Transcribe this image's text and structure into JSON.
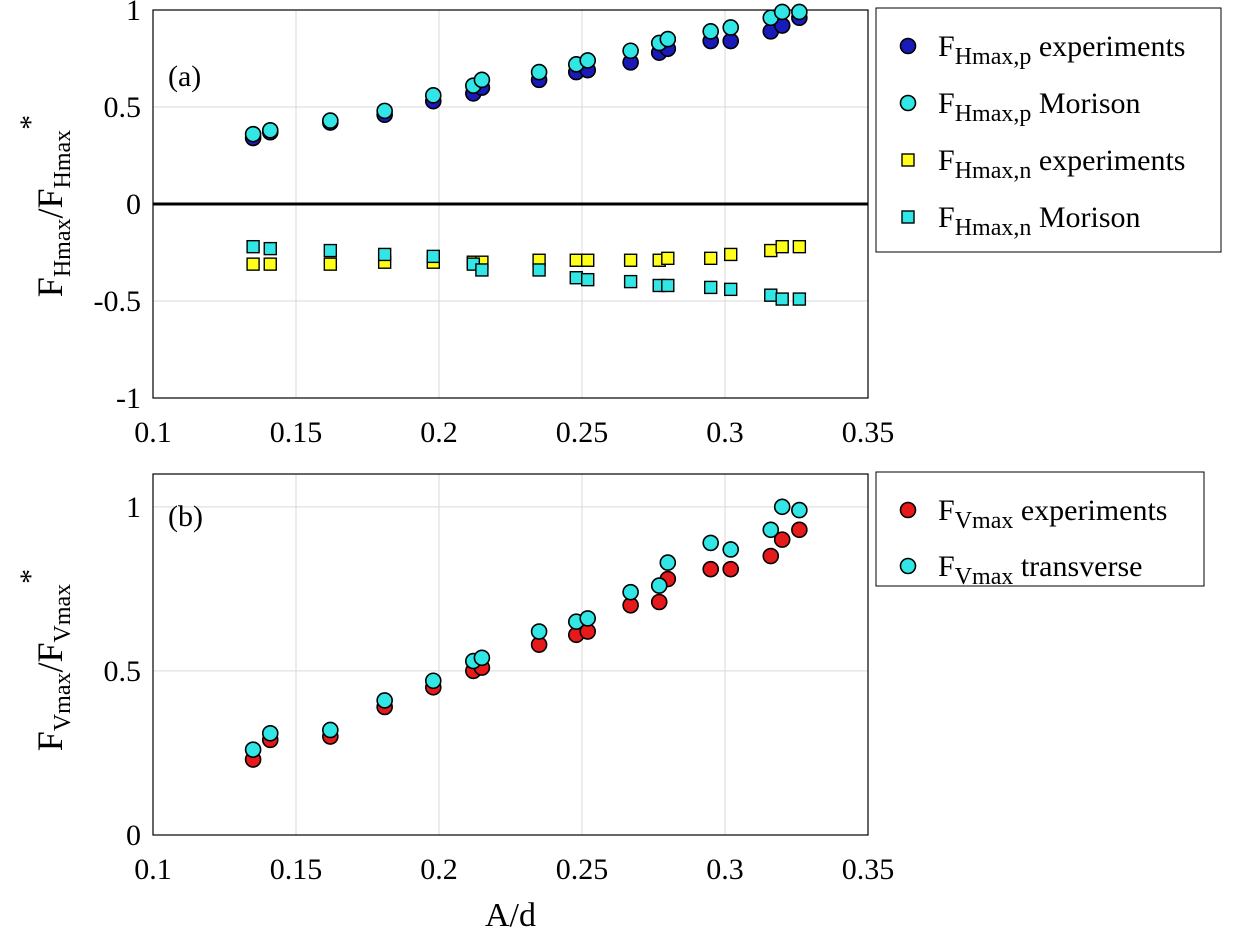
{
  "chart_data": [
    {
      "type": "scatter",
      "panel_label": "(a)",
      "xlim": [
        0.1,
        0.35
      ],
      "ylim": [
        -1,
        1
      ],
      "xticks": [
        "0.1",
        "0.15",
        "0.2",
        "0.25",
        "0.3",
        "0.35"
      ],
      "yticks": [
        "-1",
        "-0.5",
        "0",
        "0.5",
        "1"
      ],
      "grid": true,
      "zero_line": true,
      "ylabel": {
        "F1": "F",
        "sub1": "Hmax",
        "slash": "/F",
        "sub2": "Hmax",
        "star": "*"
      },
      "legend_position": "outside-right",
      "series": [
        {
          "name": {
            "main": "F",
            "sub": "Hmax,p",
            "rest": " experiments"
          },
          "marker": "circle",
          "color": "#1a1ab8",
          "x": [
            0.135,
            0.141,
            0.162,
            0.181,
            0.198,
            0.212,
            0.215,
            0.235,
            0.248,
            0.252,
            0.267,
            0.277,
            0.28,
            0.295,
            0.302,
            0.316,
            0.32,
            0.326
          ],
          "y": [
            0.34,
            0.37,
            0.42,
            0.46,
            0.53,
            0.57,
            0.6,
            0.64,
            0.68,
            0.69,
            0.73,
            0.78,
            0.8,
            0.84,
            0.84,
            0.89,
            0.92,
            0.96
          ]
        },
        {
          "name": {
            "main": "F",
            "sub": "Hmax,p",
            "rest": " Morison"
          },
          "marker": "circle",
          "color": "#33e6e6",
          "x": [
            0.135,
            0.141,
            0.162,
            0.181,
            0.198,
            0.212,
            0.215,
            0.235,
            0.248,
            0.252,
            0.267,
            0.277,
            0.28,
            0.295,
            0.302,
            0.316,
            0.32,
            0.326
          ],
          "y": [
            0.36,
            0.38,
            0.43,
            0.48,
            0.56,
            0.61,
            0.64,
            0.68,
            0.72,
            0.74,
            0.79,
            0.83,
            0.85,
            0.89,
            0.91,
            0.96,
            0.99,
            0.99
          ]
        },
        {
          "name": {
            "main": "F",
            "sub": "Hmax,n",
            "rest": " experiments"
          },
          "marker": "square",
          "color": "#ffff1a",
          "x": [
            0.135,
            0.141,
            0.162,
            0.181,
            0.198,
            0.212,
            0.215,
            0.235,
            0.248,
            0.252,
            0.267,
            0.277,
            0.28,
            0.295,
            0.302,
            0.316,
            0.32,
            0.326
          ],
          "y": [
            -0.31,
            -0.31,
            -0.31,
            -0.3,
            -0.3,
            -0.3,
            -0.3,
            -0.29,
            -0.29,
            -0.29,
            -0.29,
            -0.29,
            -0.28,
            -0.28,
            -0.26,
            -0.24,
            -0.22,
            -0.22
          ]
        },
        {
          "name": {
            "main": "F",
            "sub": "Hmax,n",
            "rest": " Morison"
          },
          "marker": "square",
          "color": "#33e6e6",
          "x": [
            0.135,
            0.141,
            0.162,
            0.181,
            0.198,
            0.212,
            0.215,
            0.235,
            0.248,
            0.252,
            0.267,
            0.277,
            0.28,
            0.295,
            0.302,
            0.316,
            0.32,
            0.326
          ],
          "y": [
            -0.22,
            -0.23,
            -0.24,
            -0.26,
            -0.27,
            -0.31,
            -0.34,
            -0.34,
            -0.38,
            -0.39,
            -0.4,
            -0.42,
            -0.42,
            -0.43,
            -0.44,
            -0.47,
            -0.49,
            -0.49
          ]
        }
      ]
    },
    {
      "type": "scatter",
      "panel_label": "(b)",
      "xlim": [
        0.1,
        0.35
      ],
      "ylim": [
        0,
        1.1
      ],
      "xticks": [
        "0.1",
        "0.15",
        "0.2",
        "0.25",
        "0.3",
        "0.35"
      ],
      "yticks": [
        "0",
        "0.5",
        "1"
      ],
      "grid": true,
      "xlabel": "A/d",
      "ylabel": {
        "F1": "F",
        "sub1": "Vmax",
        "slash": "/F",
        "sub2": "Vmax",
        "star": "*"
      },
      "legend_position": "outside-right",
      "series": [
        {
          "name": {
            "main": "F",
            "sub": "Vmax",
            "rest": " experiments"
          },
          "marker": "circle",
          "color": "#e61a1a",
          "x": [
            0.135,
            0.141,
            0.162,
            0.181,
            0.198,
            0.212,
            0.215,
            0.235,
            0.248,
            0.252,
            0.267,
            0.277,
            0.28,
            0.295,
            0.302,
            0.316,
            0.32,
            0.326
          ],
          "y": [
            0.23,
            0.29,
            0.3,
            0.39,
            0.45,
            0.5,
            0.51,
            0.58,
            0.61,
            0.62,
            0.7,
            0.71,
            0.78,
            0.81,
            0.81,
            0.85,
            0.9,
            0.93
          ]
        },
        {
          "name": {
            "main": "F",
            "sub": "Vmax",
            "rest": " transverse"
          },
          "marker": "circle",
          "color": "#33e6e6",
          "x": [
            0.135,
            0.141,
            0.162,
            0.181,
            0.198,
            0.212,
            0.215,
            0.235,
            0.248,
            0.252,
            0.267,
            0.277,
            0.28,
            0.295,
            0.302,
            0.316,
            0.32,
            0.326
          ],
          "y": [
            0.26,
            0.31,
            0.32,
            0.41,
            0.47,
            0.53,
            0.54,
            0.62,
            0.65,
            0.66,
            0.74,
            0.76,
            0.83,
            0.89,
            0.87,
            0.93,
            1.0,
            0.99
          ]
        }
      ]
    }
  ]
}
